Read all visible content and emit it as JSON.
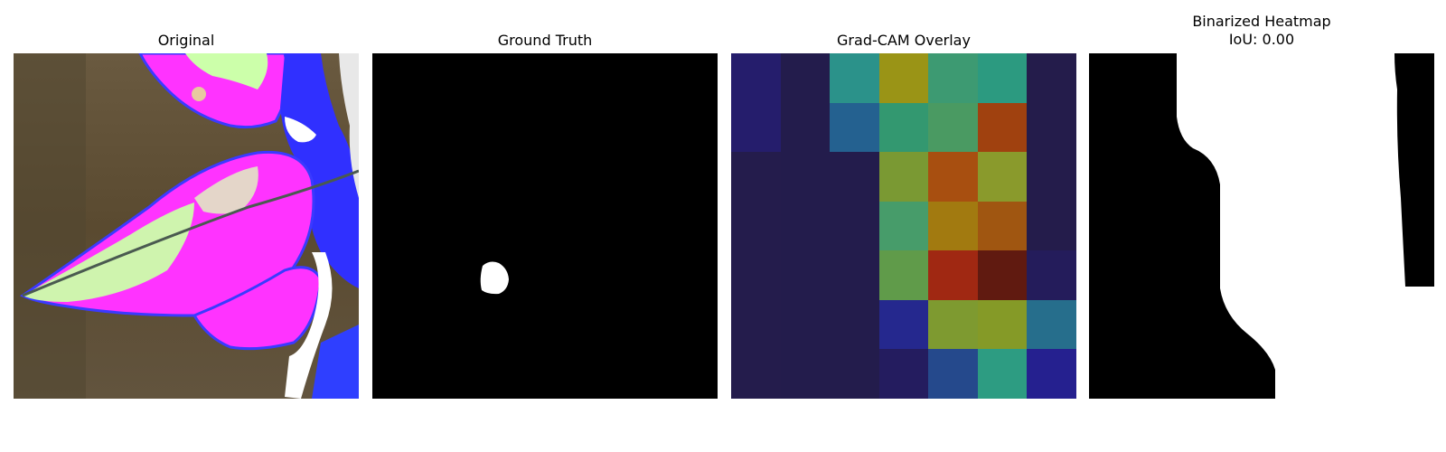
{
  "panels": {
    "original": {
      "title": "Original"
    },
    "ground_truth": {
      "title": "Ground Truth"
    },
    "gradcam": {
      "title": "Grad-CAM Overlay",
      "grid": [
        [
          "#251d6c",
          "#231c4c",
          "#2b928a",
          "#9a9416",
          "#3d9a72",
          "#2c9a80",
          "#241c4b"
        ],
        [
          "#251d6c",
          "#231c4c",
          "#246190",
          "#339870",
          "#4a9a62",
          "#a0410f",
          "#241c4b"
        ],
        [
          "#241c4c",
          "#231c4c",
          "#231c4c",
          "#7a9933",
          "#a84f10",
          "#8a9a2c",
          "#241c4b"
        ],
        [
          "#241c4c",
          "#231c4c",
          "#231c4c",
          "#479c6a",
          "#a27a10",
          "#a05611",
          "#241c4b"
        ],
        [
          "#241c4c",
          "#231c4c",
          "#231c4c",
          "#609b4a",
          "#a02812",
          "#601a10",
          "#241c5b"
        ],
        [
          "#241c4c",
          "#231c4c",
          "#231c4c",
          "#25288e",
          "#7e9a30",
          "#859a27",
          "#266e8c"
        ],
        [
          "#241c4c",
          "#231c4c",
          "#231c4c",
          "#241c5f",
          "#25498c",
          "#2d9c82",
          "#25208f"
        ]
      ]
    },
    "binarized": {
      "title_line1": "Binarized Heatmap",
      "title_line2": "IoU: 0.00"
    }
  }
}
